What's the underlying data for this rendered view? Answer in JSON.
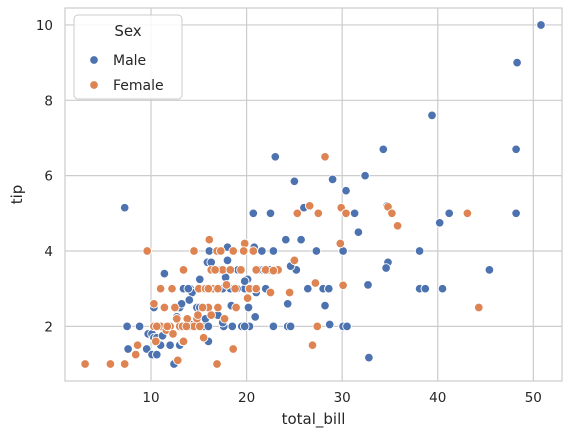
{
  "chart_data": {
    "type": "scatter",
    "title": "",
    "xlabel": "total_bill",
    "ylabel": "tip",
    "xlim": [
      1.0,
      53.0
    ],
    "ylim": [
      0.55,
      10.45
    ],
    "xticks": [
      10,
      20,
      30,
      40,
      50
    ],
    "yticks": [
      2,
      4,
      6,
      8,
      10
    ],
    "grid": true,
    "legend": {
      "title": "Sex",
      "placement": "top-left"
    },
    "colors": {
      "Male": "#4c72b0",
      "Female": "#dd8452",
      "grid": "#cccccc",
      "background": "#ffffff",
      "point_edge": "#ffffff"
    },
    "series": [
      {
        "name": "Male",
        "points": [
          [
            50.8,
            10.0
          ],
          [
            48.3,
            9.0
          ],
          [
            39.4,
            7.6
          ],
          [
            48.2,
            6.7
          ],
          [
            34.3,
            6.7
          ],
          [
            23.0,
            6.5
          ],
          [
            29.0,
            5.9
          ],
          [
            32.4,
            6.0
          ],
          [
            25.0,
            5.85
          ],
          [
            7.25,
            5.15
          ],
          [
            20.7,
            5.0
          ],
          [
            22.5,
            5.0
          ],
          [
            26.0,
            5.15
          ],
          [
            30.4,
            5.6
          ],
          [
            31.3,
            5.0
          ],
          [
            34.7,
            5.2
          ],
          [
            41.2,
            5.0
          ],
          [
            48.2,
            5.0
          ],
          [
            40.2,
            4.75
          ],
          [
            34.8,
            3.7
          ],
          [
            31.7,
            4.5
          ],
          [
            24.1,
            4.3
          ],
          [
            22.8,
            4.0
          ],
          [
            25.7,
            4.3
          ],
          [
            27.3,
            4.0
          ],
          [
            30.1,
            4.0
          ],
          [
            38.1,
            4.0
          ],
          [
            45.4,
            3.5
          ],
          [
            40.5,
            3.0
          ],
          [
            38.1,
            3.0
          ],
          [
            38.7,
            3.0
          ],
          [
            32.7,
            3.1
          ],
          [
            34.6,
            3.55
          ],
          [
            28.0,
            3.0
          ],
          [
            28.6,
            3.0
          ],
          [
            26.4,
            3.0
          ],
          [
            25.2,
            3.5
          ],
          [
            24.6,
            3.6
          ],
          [
            19.8,
            3.0
          ],
          [
            18.2,
            3.0
          ],
          [
            17.3,
            3.5
          ],
          [
            15.9,
            3.7
          ],
          [
            14.1,
            3.0
          ],
          [
            13.4,
            3.0
          ],
          [
            11.4,
            3.4
          ],
          [
            16.1,
            4.0
          ],
          [
            18.0,
            4.1
          ],
          [
            16.9,
            4.0
          ],
          [
            20.1,
            3.25
          ],
          [
            21.5,
            3.5
          ],
          [
            22.4,
            3.5
          ],
          [
            19.8,
            3.2
          ],
          [
            17.8,
            3.3
          ],
          [
            15.1,
            3.25
          ],
          [
            14.3,
            2.9
          ],
          [
            16.3,
            3.7
          ],
          [
            20.7,
            3.0
          ],
          [
            21.0,
            3.0
          ],
          [
            21.2,
            3.5
          ],
          [
            19.1,
            3.5
          ],
          [
            18.3,
            3.0
          ],
          [
            17.9,
            3.1
          ],
          [
            15.4,
            3.0
          ],
          [
            13.0,
            2.5
          ],
          [
            12.5,
            2.5
          ],
          [
            10.3,
            2.5
          ],
          [
            9.7,
            1.8
          ],
          [
            9.55,
            1.4
          ],
          [
            8.5,
            1.5
          ],
          [
            7.6,
            1.4
          ],
          [
            7.5,
            2.0
          ],
          [
            8.8,
            2.0
          ],
          [
            10.1,
            1.8
          ],
          [
            10.3,
            1.7
          ],
          [
            10.6,
            1.7
          ],
          [
            11.2,
            1.75
          ],
          [
            12.0,
            1.5
          ],
          [
            13.0,
            1.5
          ],
          [
            13.8,
            2.0
          ],
          [
            14.7,
            2.0
          ],
          [
            15.5,
            2.0
          ],
          [
            15.7,
            2.2
          ],
          [
            16.0,
            2.0
          ],
          [
            16.3,
            2.3
          ],
          [
            17.0,
            2.3
          ],
          [
            17.6,
            2.0
          ],
          [
            18.5,
            2.0
          ],
          [
            19.5,
            2.0
          ],
          [
            20.3,
            2.0
          ],
          [
            20.9,
            2.25
          ],
          [
            22.8,
            2.0
          ],
          [
            24.3,
            2.0
          ],
          [
            24.6,
            2.0
          ],
          [
            24.3,
            2.6
          ],
          [
            28.2,
            2.55
          ],
          [
            28.7,
            2.05
          ],
          [
            30.1,
            2.0
          ],
          [
            30.5,
            2.0
          ],
          [
            32.8,
            1.17
          ],
          [
            12.4,
            1.0
          ],
          [
            10.1,
            1.25
          ],
          [
            10.6,
            1.25
          ],
          [
            11.0,
            1.5
          ],
          [
            11.7,
            2.0
          ],
          [
            12.6,
            2.2
          ],
          [
            13.3,
            1.6
          ],
          [
            14.1,
            2.05
          ],
          [
            14.8,
            2.5
          ],
          [
            15.1,
            2.5
          ],
          [
            16.0,
            1.6
          ],
          [
            17.5,
            2.1
          ],
          [
            18.4,
            2.55
          ],
          [
            19.8,
            2.0
          ],
          [
            20.2,
            2.5
          ],
          [
            21.0,
            2.9
          ],
          [
            22.0,
            3.0
          ],
          [
            12.7,
            2.25
          ],
          [
            13.2,
            2.6
          ],
          [
            14.0,
            2.7
          ],
          [
            13.9,
            3.0
          ],
          [
            18.0,
            3.75
          ],
          [
            19.0,
            3.0
          ],
          [
            21.6,
            4.0
          ],
          [
            20.8,
            4.1
          ],
          [
            17.5,
            3.0
          ]
        ]
      },
      {
        "name": "Female",
        "points": [
          [
            3.1,
            1.0
          ],
          [
            5.75,
            1.0
          ],
          [
            7.25,
            1.0
          ],
          [
            9.6,
            4.0
          ],
          [
            8.4,
            1.25
          ],
          [
            8.6,
            1.5
          ],
          [
            10.3,
            2.6
          ],
          [
            10.5,
            1.6
          ],
          [
            10.3,
            2.0
          ],
          [
            11.0,
            2.0
          ],
          [
            11.6,
            1.9
          ],
          [
            12.0,
            2.0
          ],
          [
            12.5,
            2.5
          ],
          [
            12.8,
            1.1
          ],
          [
            13.0,
            2.0
          ],
          [
            13.4,
            1.6
          ],
          [
            13.4,
            3.5
          ],
          [
            14.5,
            4.0
          ],
          [
            14.8,
            2.2
          ],
          [
            15.0,
            3.0
          ],
          [
            15.5,
            1.7
          ],
          [
            15.7,
            3.0
          ],
          [
            16.1,
            4.3
          ],
          [
            16.3,
            3.5
          ],
          [
            16.5,
            3.0
          ],
          [
            16.0,
            2.5
          ],
          [
            16.3,
            2.3
          ],
          [
            17.0,
            3.0
          ],
          [
            16.9,
            4.0
          ],
          [
            17.3,
            4.0
          ],
          [
            17.5,
            3.5
          ],
          [
            17.9,
            3.1
          ],
          [
            18.3,
            3.5
          ],
          [
            18.6,
            4.0
          ],
          [
            18.8,
            3.0
          ],
          [
            18.6,
            1.4
          ],
          [
            16.9,
            1.0
          ],
          [
            19.4,
            3.5
          ],
          [
            19.8,
            4.2
          ],
          [
            20.1,
            2.75
          ],
          [
            20.5,
            3.0
          ],
          [
            20.7,
            4.0
          ],
          [
            21.0,
            3.5
          ],
          [
            22.0,
            3.5
          ],
          [
            22.5,
            2.9
          ],
          [
            23.3,
            3.5
          ],
          [
            24.5,
            2.9
          ],
          [
            25.0,
            3.75
          ],
          [
            25.3,
            5.0
          ],
          [
            26.6,
            5.2
          ],
          [
            26.9,
            1.5
          ],
          [
            27.2,
            3.15
          ],
          [
            27.4,
            2.0
          ],
          [
            27.5,
            5.0
          ],
          [
            28.2,
            6.5
          ],
          [
            29.8,
            4.2
          ],
          [
            29.9,
            5.15
          ],
          [
            30.1,
            3.09
          ],
          [
            30.4,
            5.0
          ],
          [
            34.8,
            5.17
          ],
          [
            35.2,
            5.0
          ],
          [
            35.8,
            4.67
          ],
          [
            43.1,
            5.0
          ],
          [
            44.3,
            2.5
          ],
          [
            14.0,
            2.0
          ],
          [
            14.5,
            2.0
          ],
          [
            15.1,
            2.0
          ],
          [
            16.0,
            3.0
          ],
          [
            13.3,
            2.0
          ],
          [
            11.7,
            2.0
          ],
          [
            12.3,
            1.8
          ],
          [
            10.6,
            2.0
          ],
          [
            11.4,
            2.5
          ],
          [
            12.7,
            2.2
          ],
          [
            13.8,
            2.2
          ],
          [
            14.9,
            2.3
          ],
          [
            15.4,
            2.5
          ],
          [
            12.2,
            3.0
          ],
          [
            11.0,
            3.0
          ],
          [
            16.7,
            3.5
          ],
          [
            17.0,
            2.5
          ],
          [
            17.7,
            2.2
          ],
          [
            18.9,
            2.5
          ],
          [
            19.7,
            4.0
          ],
          [
            20.3,
            3.0
          ],
          [
            21.0,
            3.0
          ],
          [
            22.8,
            3.48
          ],
          [
            13.7,
            2.0
          ]
        ]
      }
    ]
  }
}
